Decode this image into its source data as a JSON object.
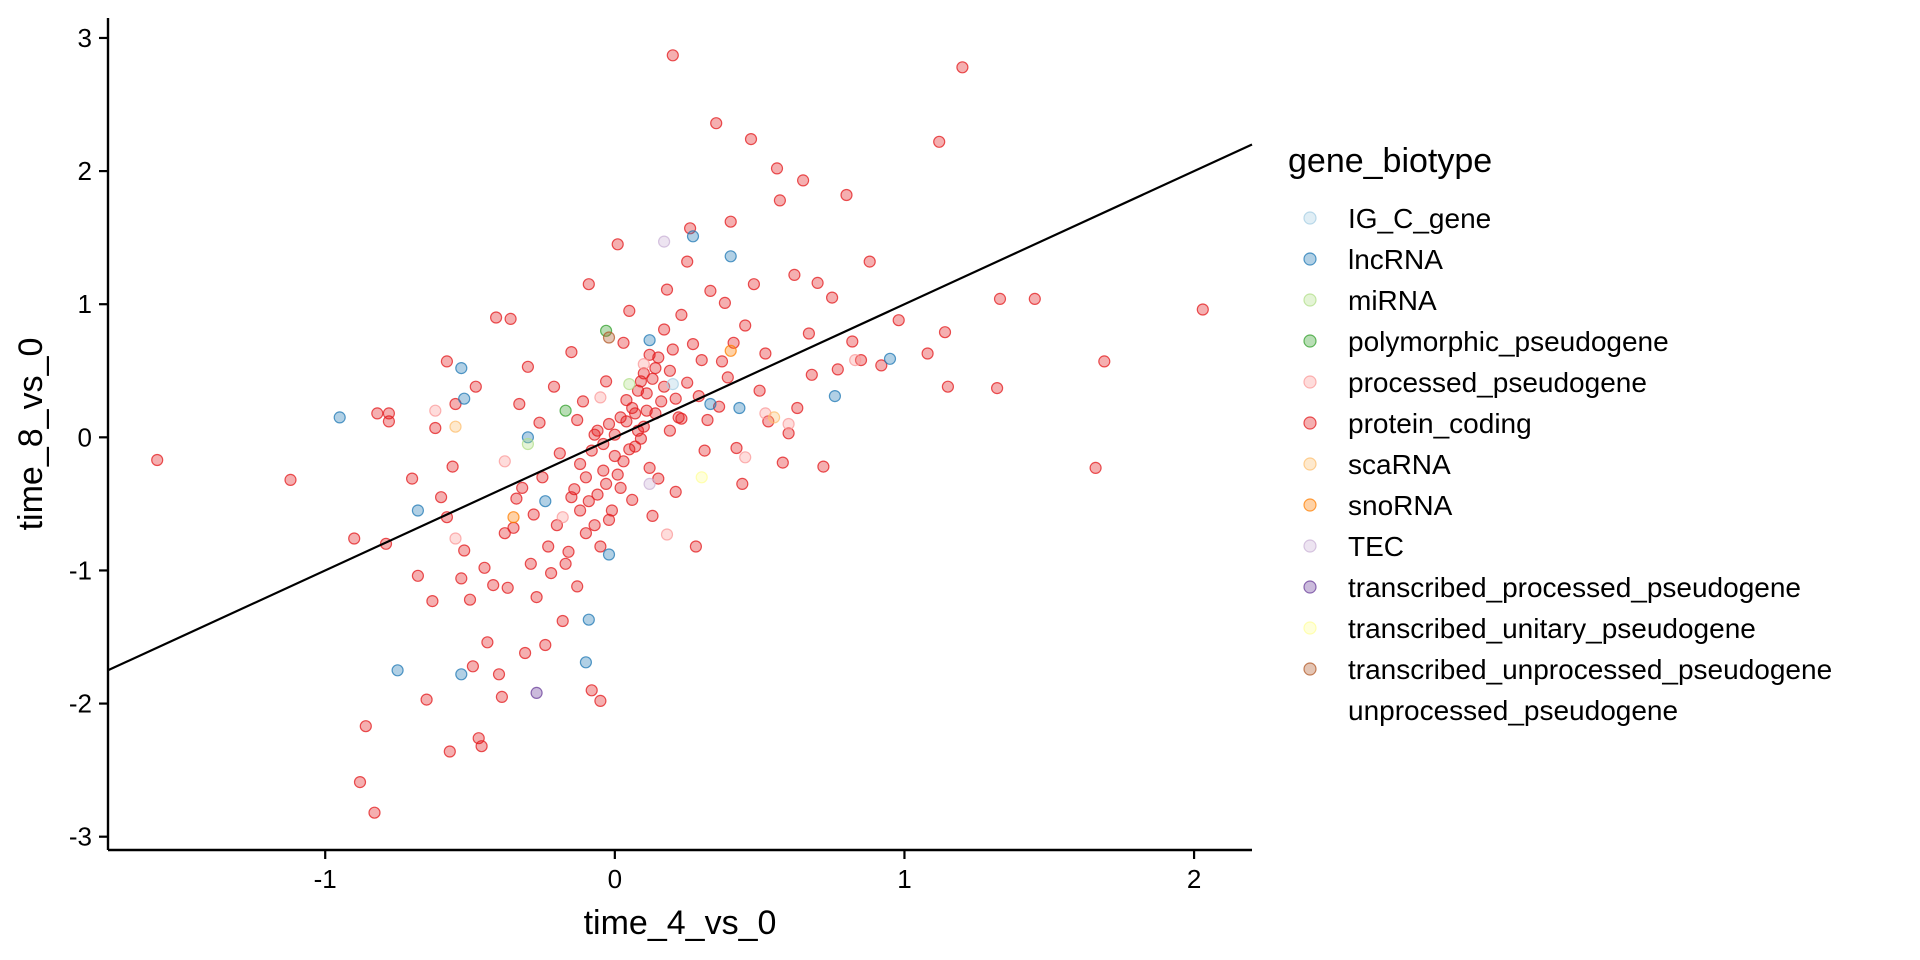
{
  "chart_data": {
    "type": "scatter",
    "xlabel": "time_4_vs_0",
    "ylabel": "time_8_vs_0",
    "xlim": [
      -1.75,
      2.2
    ],
    "ylim": [
      -3.1,
      3.15
    ],
    "x_ticks": [
      -1,
      0,
      1,
      2
    ],
    "y_ticks": [
      -3,
      -2,
      -1,
      0,
      1,
      2,
      3
    ],
    "grid": false,
    "legend": {
      "title": "gene_biotype",
      "placement": "right",
      "entries": [
        {
          "name": "IG_C_gene",
          "color": "#A6CEE3"
        },
        {
          "name": "lncRNA",
          "color": "#1F78B4"
        },
        {
          "name": "miRNA",
          "color": "#B2DF8A"
        },
        {
          "name": "polymorphic_pseudogene",
          "color": "#33A02C"
        },
        {
          "name": "processed_pseudogene",
          "color": "#FB9A99"
        },
        {
          "name": "protein_coding",
          "color": "#E31A1C"
        },
        {
          "name": "scaRNA",
          "color": "#FDBF6F"
        },
        {
          "name": "snoRNA",
          "color": "#FF7F00"
        },
        {
          "name": "TEC",
          "color": "#CAB2D6"
        },
        {
          "name": "transcribed_processed_pseudogene",
          "color": "#6A3D9A"
        },
        {
          "name": "transcribed_unitary_pseudogene",
          "color": "#FFFF99"
        },
        {
          "name": "transcribed_unprocessed_pseudogene",
          "color": "#B15928"
        },
        {
          "name": "unprocessed_pseudogene",
          "color": "#FFFFFF"
        }
      ]
    },
    "regression_line": {
      "slope": 1.0,
      "intercept": 0.0
    },
    "series": [
      {
        "name": "protein_coding",
        "points": [
          [
            -1.58,
            -0.17
          ],
          [
            -1.12,
            -0.32
          ],
          [
            -0.9,
            -0.76
          ],
          [
            -0.88,
            -2.59
          ],
          [
            -0.86,
            -2.17
          ],
          [
            -0.83,
            -2.82
          ],
          [
            -0.79,
            -0.8
          ],
          [
            -0.78,
            0.12
          ],
          [
            -0.78,
            0.18
          ],
          [
            -0.7,
            -0.31
          ],
          [
            -0.68,
            -1.04
          ],
          [
            -0.65,
            -1.97
          ],
          [
            -0.63,
            -1.23
          ],
          [
            -0.6,
            -0.45
          ],
          [
            -0.58,
            0.57
          ],
          [
            -0.57,
            -2.36
          ],
          [
            -0.56,
            -0.22
          ],
          [
            -0.55,
            0.25
          ],
          [
            -0.52,
            -0.85
          ],
          [
            -0.5,
            -1.22
          ],
          [
            -0.49,
            -1.72
          ],
          [
            -0.47,
            -2.26
          ],
          [
            -0.46,
            -2.32
          ],
          [
            -0.44,
            -1.54
          ],
          [
            -0.42,
            -1.11
          ],
          [
            -0.4,
            -1.78
          ],
          [
            -0.39,
            -1.95
          ],
          [
            -0.37,
            -1.13
          ],
          [
            -0.35,
            -0.68
          ],
          [
            -0.34,
            -0.46
          ],
          [
            -0.31,
            -1.62
          ],
          [
            -0.29,
            -0.95
          ],
          [
            -0.27,
            -1.2
          ],
          [
            -0.24,
            -1.56
          ],
          [
            -0.23,
            -0.82
          ],
          [
            -0.22,
            -1.02
          ],
          [
            -0.2,
            -0.66
          ],
          [
            -0.18,
            -1.38
          ],
          [
            -0.16,
            -0.86
          ],
          [
            -0.14,
            -0.39
          ],
          [
            -0.12,
            -0.55
          ],
          [
            -0.1,
            -0.72
          ],
          [
            -0.08,
            -1.9
          ],
          [
            -0.06,
            -0.43
          ],
          [
            -0.05,
            -1.98
          ],
          [
            -0.04,
            -0.25
          ],
          [
            -0.02,
            -0.62
          ],
          [
            0.0,
            -0.14
          ],
          [
            0.02,
            -0.38
          ],
          [
            0.04,
            0.12
          ],
          [
            0.06,
            -0.47
          ],
          [
            0.08,
            0.35
          ],
          [
            0.1,
            0.08
          ],
          [
            0.12,
            -0.23
          ],
          [
            0.14,
            0.52
          ],
          [
            0.16,
            0.27
          ],
          [
            0.18,
            1.11
          ],
          [
            0.2,
            0.66
          ],
          [
            0.2,
            2.87
          ],
          [
            0.22,
            0.15
          ],
          [
            0.25,
            1.32
          ],
          [
            0.28,
            -0.82
          ],
          [
            0.3,
            0.58
          ],
          [
            0.35,
            2.36
          ],
          [
            0.38,
            1.01
          ],
          [
            0.4,
            1.62
          ],
          [
            0.42,
            -0.08
          ],
          [
            0.45,
            0.84
          ],
          [
            0.47,
            2.24
          ],
          [
            0.5,
            0.35
          ],
          [
            0.52,
            0.63
          ],
          [
            0.56,
            2.02
          ],
          [
            0.58,
            -0.19
          ],
          [
            0.62,
            1.22
          ],
          [
            0.65,
            1.93
          ],
          [
            0.68,
            0.47
          ],
          [
            0.72,
            -0.22
          ],
          [
            0.75,
            1.05
          ],
          [
            0.8,
            1.82
          ],
          [
            0.82,
            0.72
          ],
          [
            0.88,
            1.32
          ],
          [
            0.92,
            0.54
          ],
          [
            0.98,
            0.88
          ],
          [
            1.08,
            0.63
          ],
          [
            1.12,
            2.22
          ],
          [
            1.14,
            0.79
          ],
          [
            1.15,
            0.38
          ],
          [
            1.2,
            2.78
          ],
          [
            1.32,
            0.37
          ],
          [
            1.33,
            1.04
          ],
          [
            1.45,
            1.04
          ],
          [
            1.66,
            -0.23
          ],
          [
            1.69,
            0.57
          ],
          [
            2.03,
            0.96
          ],
          [
            -0.82,
            0.18
          ],
          [
            -0.62,
            0.07
          ],
          [
            -0.48,
            0.38
          ],
          [
            -0.41,
            0.9
          ],
          [
            -0.36,
            0.89
          ],
          [
            -0.33,
            0.25
          ],
          [
            -0.3,
            0.53
          ],
          [
            -0.26,
            0.11
          ],
          [
            -0.21,
            0.38
          ],
          [
            -0.19,
            -0.12
          ],
          [
            -0.15,
            0.64
          ],
          [
            -0.13,
            0.13
          ],
          [
            -0.11,
            0.27
          ],
          [
            -0.09,
            1.15
          ],
          [
            -0.07,
            0.02
          ],
          [
            -0.03,
            0.42
          ],
          [
            0.01,
            1.45
          ],
          [
            0.03,
            0.71
          ],
          [
            0.05,
            0.95
          ],
          [
            0.07,
            -0.07
          ],
          [
            0.09,
            0.42
          ],
          [
            0.11,
            0.2
          ],
          [
            0.13,
            -0.59
          ],
          [
            0.15,
            -0.31
          ],
          [
            0.17,
            0.81
          ],
          [
            0.19,
            0.05
          ],
          [
            0.21,
            -0.41
          ],
          [
            0.23,
            0.92
          ],
          [
            0.26,
            1.57
          ],
          [
            0.29,
            0.31
          ],
          [
            0.31,
            -0.1
          ],
          [
            0.33,
            1.1
          ],
          [
            0.36,
            0.23
          ],
          [
            0.39,
            0.45
          ],
          [
            0.41,
            0.71
          ],
          [
            0.44,
            -0.35
          ],
          [
            0.48,
            1.15
          ],
          [
            0.53,
            0.12
          ],
          [
            0.57,
            1.78
          ],
          [
            0.6,
            0.03
          ],
          [
            0.63,
            0.22
          ],
          [
            0.67,
            0.78
          ],
          [
            0.7,
            1.16
          ],
          [
            0.77,
            0.51
          ],
          [
            0.85,
            0.58
          ],
          [
            -0.58,
            -0.6
          ],
          [
            -0.53,
            -1.06
          ],
          [
            -0.45,
            -0.98
          ],
          [
            -0.38,
            -0.72
          ],
          [
            -0.32,
            -0.38
          ],
          [
            -0.28,
            -0.58
          ],
          [
            -0.25,
            -0.3
          ],
          [
            -0.17,
            -0.95
          ],
          [
            -0.13,
            -1.12
          ],
          [
            -0.1,
            -0.3
          ],
          [
            -0.09,
            -0.48
          ],
          [
            -0.07,
            -0.66
          ],
          [
            -0.05,
            -0.82
          ],
          [
            -0.03,
            -0.35
          ],
          [
            -0.01,
            -0.55
          ],
          [
            0.01,
            -0.28
          ],
          [
            0.03,
            -0.18
          ],
          [
            0.05,
            -0.09
          ],
          [
            0.07,
            0.18
          ],
          [
            0.09,
            -0.01
          ],
          [
            0.11,
            0.33
          ],
          [
            0.13,
            0.44
          ],
          [
            0.15,
            0.6
          ],
          [
            0.17,
            0.38
          ],
          [
            0.19,
            0.5
          ],
          [
            0.21,
            0.29
          ],
          [
            0.23,
            0.14
          ],
          [
            0.25,
            0.41
          ],
          [
            0.27,
            0.7
          ],
          [
            0.32,
            0.13
          ],
          [
            0.37,
            0.57
          ],
          [
            -0.15,
            -0.45
          ],
          [
            -0.12,
            -0.2
          ],
          [
            -0.08,
            -0.1
          ],
          [
            -0.06,
            0.05
          ],
          [
            -0.04,
            -0.05
          ],
          [
            -0.02,
            0.1
          ],
          [
            0.0,
            0.02
          ],
          [
            0.02,
            0.15
          ],
          [
            0.04,
            0.28
          ],
          [
            0.06,
            0.22
          ],
          [
            0.08,
            0.05
          ],
          [
            0.1,
            0.48
          ],
          [
            0.12,
            0.62
          ],
          [
            0.14,
            0.18
          ]
        ]
      },
      {
        "name": "lncRNA",
        "points": [
          [
            -0.95,
            0.15
          ],
          [
            -0.68,
            -0.55
          ],
          [
            -0.53,
            0.52
          ],
          [
            -0.52,
            0.29
          ],
          [
            -0.75,
            -1.75
          ],
          [
            -0.53,
            -1.78
          ],
          [
            -0.09,
            -1.37
          ],
          [
            -0.1,
            -1.69
          ],
          [
            -0.02,
            -0.88
          ],
          [
            0.27,
            1.51
          ],
          [
            0.4,
            1.36
          ],
          [
            0.43,
            0.22
          ],
          [
            0.76,
            0.31
          ],
          [
            0.95,
            0.59
          ],
          [
            0.33,
            0.25
          ],
          [
            -0.24,
            -0.48
          ],
          [
            -0.3,
            0.0
          ],
          [
            0.12,
            0.73
          ]
        ]
      },
      {
        "name": "processed_pseudogene",
        "points": [
          [
            -0.62,
            0.2
          ],
          [
            -0.55,
            -0.76
          ],
          [
            -0.38,
            -0.18
          ],
          [
            -0.18,
            -0.6
          ],
          [
            0.18,
            -0.73
          ],
          [
            0.45,
            -0.15
          ],
          [
            0.52,
            0.18
          ],
          [
            0.6,
            0.1
          ],
          [
            0.83,
            0.58
          ],
          [
            0.1,
            0.55
          ],
          [
            -0.05,
            0.3
          ]
        ]
      },
      {
        "name": "polymorphic_pseudogene",
        "points": [
          [
            -0.17,
            0.2
          ],
          [
            -0.03,
            0.8
          ]
        ]
      },
      {
        "name": "miRNA",
        "points": [
          [
            -0.3,
            -0.05
          ],
          [
            0.05,
            0.4
          ]
        ]
      },
      {
        "name": "scaRNA",
        "points": [
          [
            -0.55,
            0.08
          ],
          [
            0.55,
            0.15
          ]
        ]
      },
      {
        "name": "snoRNA",
        "points": [
          [
            -0.35,
            -0.6
          ],
          [
            0.4,
            0.65
          ]
        ]
      },
      {
        "name": "TEC",
        "points": [
          [
            0.17,
            1.47
          ],
          [
            0.12,
            -0.35
          ]
        ]
      },
      {
        "name": "transcribed_processed_pseudogene",
        "points": [
          [
            -0.27,
            -1.92
          ]
        ]
      },
      {
        "name": "transcribed_unitary_pseudogene",
        "points": [
          [
            0.3,
            -0.3
          ]
        ]
      },
      {
        "name": "transcribed_unprocessed_pseudogene",
        "points": [
          [
            -0.02,
            0.75
          ]
        ]
      },
      {
        "name": "IG_C_gene",
        "points": [
          [
            0.2,
            0.4
          ]
        ]
      }
    ]
  }
}
